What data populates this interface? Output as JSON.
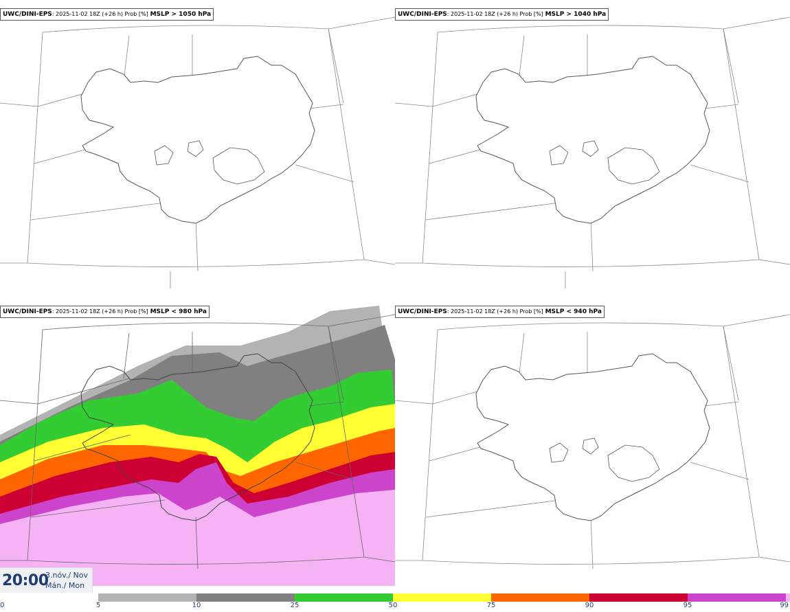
{
  "panels": [
    {
      "source": "UWC/DINI-EPS",
      "run": ": 2025-11-02 18Z (+26 h) Prob [%]",
      "threshold": "MSLP > 1050 hPa"
    },
    {
      "source": "UWC/DINI-EPS",
      "run": ": 2025-11-02 18Z (+26 h) Prob [%]",
      "threshold": "MSLP > 1040 hPa"
    },
    {
      "source": "UWC/DINI-EPS",
      "run": ": 2025-11-02 18Z (+26 h) Prob [%]",
      "threshold": "MSLP < 980 hPa"
    },
    {
      "source": "UWC/DINI-EPS",
      "run": ": 2025-11-02 18Z (+26 h) Prob [%]",
      "threshold": "MSLP < 940 hPa"
    }
  ],
  "time": {
    "clock": "20:00",
    "date_line1": "3.nóv./ Nov",
    "date_line2": "Mán./ Mon"
  },
  "colorbar": {
    "bins": [
      {
        "from": 0,
        "to": 5,
        "color": "#ffffff"
      },
      {
        "from": 5,
        "to": 10,
        "color": "#b3b3b3"
      },
      {
        "from": 10,
        "to": 25,
        "color": "#808080"
      },
      {
        "from": 25,
        "to": 50,
        "color": "#33cc33"
      },
      {
        "from": 50,
        "to": 75,
        "color": "#ffff33"
      },
      {
        "from": 75,
        "to": 90,
        "color": "#ff6600"
      },
      {
        "from": 90,
        "to": 95,
        "color": "#cc0033"
      },
      {
        "from": 95,
        "to": 99,
        "color": "#cc44cc"
      },
      {
        "from": 99,
        "to": 100,
        "color": "#f5b3f5"
      }
    ],
    "ticks": [
      "0",
      "5",
      "10",
      "25",
      "50",
      "75",
      "90",
      "95",
      "99"
    ]
  }
}
